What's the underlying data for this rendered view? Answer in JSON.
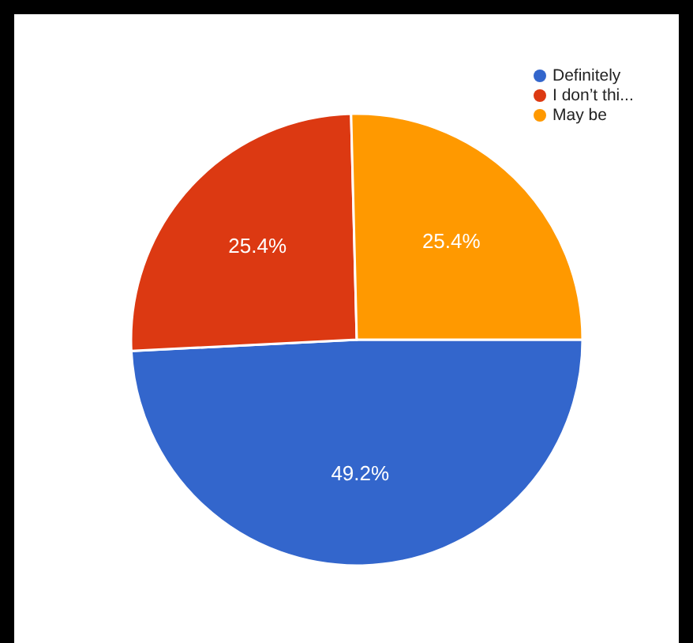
{
  "chart_data": {
    "type": "pie",
    "categories": [
      "Definitely",
      "I don’t thi...",
      "May be"
    ],
    "values": [
      49.2,
      25.4,
      25.4
    ],
    "colors": [
      "#3366cc",
      "#dc3912",
      "#ff9900"
    ],
    "value_labels": [
      "49.2%",
      "25.4%",
      "25.4%"
    ],
    "legend": "top right"
  }
}
